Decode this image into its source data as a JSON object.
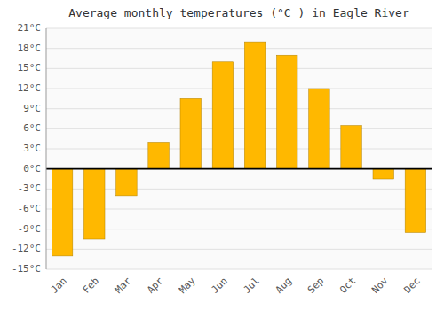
{
  "chart_data": {
    "type": "bar",
    "title": "Average monthly temperatures (°C ) in Eagle River",
    "categories": [
      "Jan",
      "Feb",
      "Mar",
      "Apr",
      "May",
      "Jun",
      "Jul",
      "Aug",
      "Sep",
      "Oct",
      "Nov",
      "Dec"
    ],
    "values": [
      -13,
      -10.5,
      -4,
      4,
      10.5,
      16,
      19,
      17,
      12,
      6.5,
      -1.5,
      -9.5
    ],
    "color": "#FFB800",
    "ylim": [
      -15,
      21
    ],
    "yticks": [
      {
        "value": -15,
        "label": "-15°C"
      },
      {
        "value": -12,
        "label": "-12°C"
      },
      {
        "value": -9,
        "label": "-9°C"
      },
      {
        "value": -6,
        "label": "-6°C"
      },
      {
        "value": -3,
        "label": "-3°C"
      },
      {
        "value": 0,
        "label": "0°C"
      },
      {
        "value": 3,
        "label": "3°C"
      },
      {
        "value": 6,
        "label": "6°C"
      },
      {
        "value": 9,
        "label": "9°C"
      },
      {
        "value": 12,
        "label": "12°C"
      },
      {
        "value": 15,
        "label": "15°C"
      },
      {
        "value": 18,
        "label": "18°C"
      },
      {
        "value": 21,
        "label": "21°C"
      }
    ],
    "grid": true
  }
}
